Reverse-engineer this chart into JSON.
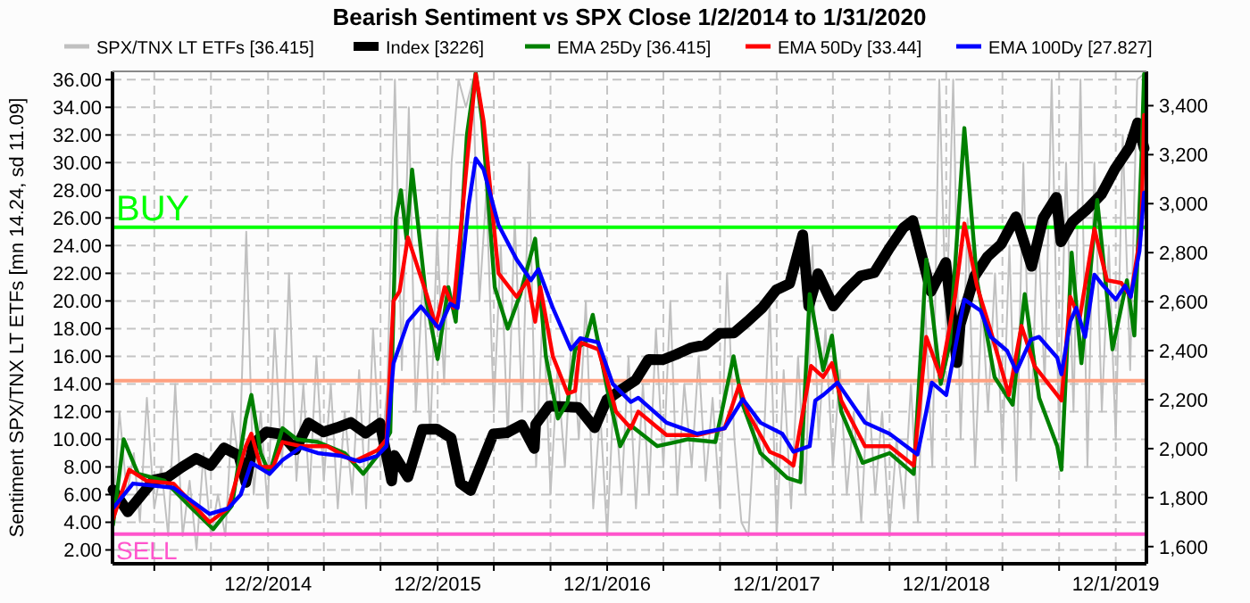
{
  "chart_data": {
    "type": "line",
    "title": "Bearish Sentiment vs SPX Close 1/2/2014 to 1/31/2020",
    "ylabel": "Sentiment SPX/TNX LT ETFs [mn 14.24, sd 11.09]",
    "xlim": [
      "2014-01-01",
      "2020-02-05"
    ],
    "ylim": [
      1,
      36.6
    ],
    "y2lim": [
      1530,
      3540
    ],
    "xticks": [
      {
        "value": "2014-04-01",
        "label": null
      },
      {
        "value": "2014-08-01",
        "label": null
      },
      {
        "value": "2014-12-02",
        "label": "12/2/2014"
      },
      {
        "value": "2015-04-01",
        "label": null
      },
      {
        "value": "2015-08-01",
        "label": null
      },
      {
        "value": "2015-12-02",
        "label": "12/2/2015"
      },
      {
        "value": "2016-04-01",
        "label": null
      },
      {
        "value": "2016-08-01",
        "label": null
      },
      {
        "value": "2016-12-01",
        "label": "12/1/2016"
      },
      {
        "value": "2017-04-01",
        "label": null
      },
      {
        "value": "2017-08-01",
        "label": null
      },
      {
        "value": "2017-12-01",
        "label": "12/1/2017"
      },
      {
        "value": "2018-04-01",
        "label": null
      },
      {
        "value": "2018-08-01",
        "label": null
      },
      {
        "value": "2018-12-01",
        "label": "12/1/2018"
      },
      {
        "value": "2019-04-01",
        "label": null
      },
      {
        "value": "2019-08-01",
        "label": null
      },
      {
        "value": "2019-12-01",
        "label": "12/1/2019"
      }
    ],
    "yticks": [
      {
        "value": 2,
        "label": "2.00"
      },
      {
        "value": 4,
        "label": "4.00"
      },
      {
        "value": 6,
        "label": "6.00"
      },
      {
        "value": 8,
        "label": "8.00"
      },
      {
        "value": 10,
        "label": "10.00"
      },
      {
        "value": 12,
        "label": "12.00"
      },
      {
        "value": 14,
        "label": "14.00"
      },
      {
        "value": 16,
        "label": "16.00"
      },
      {
        "value": 18,
        "label": "18.00"
      },
      {
        "value": 20,
        "label": "20.00"
      },
      {
        "value": 22,
        "label": "22.00"
      },
      {
        "value": 24,
        "label": "24.00"
      },
      {
        "value": 26,
        "label": "26.00"
      },
      {
        "value": 28,
        "label": "28.00"
      },
      {
        "value": 30,
        "label": "30.00"
      },
      {
        "value": 32,
        "label": "32.00"
      },
      {
        "value": 34,
        "label": "34.00"
      },
      {
        "value": 36,
        "label": "36.00"
      }
    ],
    "y2ticks": [
      {
        "value": 1600,
        "label": "1,600"
      },
      {
        "value": 1800,
        "label": "1,800"
      },
      {
        "value": 2000,
        "label": "2,000"
      },
      {
        "value": 2200,
        "label": "2,200"
      },
      {
        "value": 2400,
        "label": "2,400"
      },
      {
        "value": 2600,
        "label": "2,600"
      },
      {
        "value": 2800,
        "label": "2,800"
      },
      {
        "value": 3000,
        "label": "3,000"
      },
      {
        "value": 3200,
        "label": "3,200"
      },
      {
        "value": 3400,
        "label": "3,400"
      }
    ],
    "grid": true,
    "legend": "top",
    "line_style": "solid",
    "ref_lines": [
      {
        "axis": "y",
        "value": 25.33,
        "label": "BUY",
        "color": "#00ff00"
      },
      {
        "axis": "y",
        "value": 14.24,
        "label": null,
        "color": "#ffa080"
      },
      {
        "axis": "y",
        "value": 3.15,
        "label": "SELL",
        "color": "#ff55cc"
      }
    ],
    "series": [
      {
        "name": "SPX/TNX LT ETFs [36.415]",
        "color": "#c0c0c0",
        "x": [
          "2014-01-01",
          "2014-01-16",
          "2014-02-01",
          "2014-02-16",
          "2014-03-01",
          "2014-03-16",
          "2014-04-01",
          "2014-04-16",
          "2014-05-01",
          "2014-05-16",
          "2014-06-01",
          "2014-06-16",
          "2014-07-01",
          "2014-07-16",
          "2014-08-01",
          "2014-08-16",
          "2014-09-01",
          "2014-09-16",
          "2014-10-01",
          "2014-10-16",
          "2014-11-01",
          "2014-11-16",
          "2014-12-01",
          "2014-12-16",
          "2015-01-01",
          "2015-01-16",
          "2015-02-01",
          "2015-02-16",
          "2015-03-01",
          "2015-03-16",
          "2015-04-01",
          "2015-04-16",
          "2015-05-01",
          "2015-05-16",
          "2015-06-01",
          "2015-06-16",
          "2015-07-01",
          "2015-07-16",
          "2015-08-01",
          "2015-08-16",
          "2015-09-01",
          "2015-09-16",
          "2015-10-01",
          "2015-10-16",
          "2015-11-01",
          "2015-11-16",
          "2015-12-01",
          "2015-12-16",
          "2016-01-01",
          "2016-01-16",
          "2016-02-01",
          "2016-02-16",
          "2016-03-01",
          "2016-03-16",
          "2016-04-01",
          "2016-04-16",
          "2016-05-01",
          "2016-05-16",
          "2016-06-01",
          "2016-06-16",
          "2016-07-01",
          "2016-07-16",
          "2016-08-01",
          "2016-08-16",
          "2016-09-01",
          "2016-09-16",
          "2016-10-01",
          "2016-10-16",
          "2016-11-01",
          "2016-11-16",
          "2016-12-01",
          "2016-12-16",
          "2017-01-01",
          "2017-01-16",
          "2017-02-01",
          "2017-02-16",
          "2017-03-01",
          "2017-03-16",
          "2017-04-01",
          "2017-04-16",
          "2017-05-01",
          "2017-05-16",
          "2017-06-01",
          "2017-06-16",
          "2017-07-01",
          "2017-07-16",
          "2017-08-01",
          "2017-08-16",
          "2017-09-01",
          "2017-09-16",
          "2017-10-01",
          "2017-10-16",
          "2017-11-01",
          "2017-11-16",
          "2017-12-01",
          "2017-12-16",
          "2018-01-01",
          "2018-01-16",
          "2018-02-01",
          "2018-02-16",
          "2018-03-01",
          "2018-03-16",
          "2018-04-01",
          "2018-04-16",
          "2018-05-01",
          "2018-05-16",
          "2018-06-01",
          "2018-06-16",
          "2018-07-01",
          "2018-07-16",
          "2018-08-01",
          "2018-08-16",
          "2018-09-01",
          "2018-09-16",
          "2018-10-01",
          "2018-10-16",
          "2018-11-01",
          "2018-11-16",
          "2018-12-01",
          "2018-12-16",
          "2019-01-01",
          "2019-01-16",
          "2019-02-01",
          "2019-02-16",
          "2019-03-01",
          "2019-03-16",
          "2019-04-01",
          "2019-04-16",
          "2019-05-01",
          "2019-05-16",
          "2019-06-01",
          "2019-06-16",
          "2019-07-01",
          "2019-07-16",
          "2019-08-01",
          "2019-08-16",
          "2019-09-01",
          "2019-09-16",
          "2019-10-01",
          "2019-10-16",
          "2019-11-01",
          "2019-11-16",
          "2019-12-01",
          "2019-12-16",
          "2020-01-01",
          "2020-01-16",
          "2020-01-31"
        ],
        "values": [
          4,
          12,
          6,
          9,
          4,
          13,
          5,
          8,
          3,
          14,
          3,
          7,
          2,
          9,
          3,
          6,
          3,
          12,
          8,
          25,
          6,
          12,
          5,
          18,
          8,
          22,
          7,
          14,
          6,
          16,
          7,
          14,
          5,
          12,
          6,
          15,
          5,
          18,
          8,
          14,
          36,
          15,
          34,
          12,
          22,
          10,
          25,
          14,
          30,
          36,
          34,
          36,
          20,
          28,
          12,
          24,
          10,
          26,
          12,
          30,
          8,
          20,
          6,
          15,
          8,
          18,
          10,
          20,
          5,
          12,
          3,
          14,
          6,
          16,
          5,
          14,
          6,
          18,
          8,
          20,
          6,
          14,
          8,
          16,
          7,
          13,
          5,
          22,
          10,
          4,
          3,
          12,
          8,
          20,
          3,
          15,
          5,
          16,
          6,
          24,
          10,
          18,
          8,
          15,
          6,
          12,
          4,
          14,
          6,
          12,
          3,
          10,
          5,
          14,
          4,
          20,
          8,
          36,
          18,
          36,
          10,
          26,
          8,
          20,
          12,
          22,
          9,
          24,
          7,
          30,
          10,
          26,
          14,
          36,
          10,
          30,
          12,
          36,
          8,
          30,
          12,
          24,
          10,
          32,
          15,
          36,
          36.415
        ]
      },
      {
        "name": "Index [3226]",
        "color": "#000000",
        "axis": "y2",
        "x": [
          "2014-01-02",
          "2014-02-03",
          "2014-03-31",
          "2014-04-30",
          "2014-05-30",
          "2014-06-30",
          "2014-07-31",
          "2014-08-29",
          "2014-09-30",
          "2014-10-15",
          "2014-10-31",
          "2014-11-28",
          "2014-12-31",
          "2015-01-30",
          "2015-02-27",
          "2015-03-31",
          "2015-04-30",
          "2015-05-29",
          "2015-06-30",
          "2015-07-31",
          "2015-08-25",
          "2015-08-31",
          "2015-09-29",
          "2015-10-30",
          "2015-11-30",
          "2015-12-31",
          "2016-01-20",
          "2016-02-11",
          "2016-03-31",
          "2016-04-29",
          "2016-05-31",
          "2016-06-27",
          "2016-06-30",
          "2016-07-29",
          "2016-08-31",
          "2016-09-30",
          "2016-11-04",
          "2016-11-30",
          "2016-12-30",
          "2017-01-31",
          "2017-02-28",
          "2017-03-31",
          "2017-04-28",
          "2017-05-31",
          "2017-06-30",
          "2017-07-31",
          "2017-08-31",
          "2017-09-29",
          "2017-10-31",
          "2017-11-30",
          "2017-12-29",
          "2018-01-26",
          "2018-02-08",
          "2018-02-28",
          "2018-04-02",
          "2018-04-30",
          "2018-05-31",
          "2018-06-29",
          "2018-07-31",
          "2018-08-31",
          "2018-09-20",
          "2018-10-29",
          "2018-11-30",
          "2018-12-24",
          "2018-12-31",
          "2019-01-31",
          "2019-02-28",
          "2019-03-29",
          "2019-04-30",
          "2019-06-03",
          "2019-06-28",
          "2019-07-26",
          "2019-08-05",
          "2019-08-30",
          "2019-09-30",
          "2019-10-31",
          "2019-11-29",
          "2019-12-31",
          "2020-01-17",
          "2020-01-31"
        ],
        "values": [
          1832,
          1742,
          1872,
          1884,
          1924,
          1960,
          1931,
          2003,
          1972,
          1862,
          2018,
          2068,
          2059,
          1995,
          2105,
          2068,
          2086,
          2107,
          2063,
          2104,
          1868,
          1972,
          1884,
          2079,
          2080,
          2044,
          1859,
          1829,
          2060,
          2065,
          2097,
          2001,
          2099,
          2174,
          2171,
          2168,
          2085,
          2199,
          2239,
          2279,
          2364,
          2363,
          2384,
          2412,
          2423,
          2470,
          2472,
          2519,
          2575,
          2648,
          2674,
          2873,
          2581,
          2714,
          2582,
          2648,
          2705,
          2718,
          2816,
          2902,
          2931,
          2641,
          2760,
          2351,
          2507,
          2704,
          2784,
          2834,
          2946,
          2744,
          2942,
          3026,
          2844,
          2926,
          2977,
          3038,
          3141,
          3231,
          3330,
          3226
        ]
      },
      {
        "name": "EMA 25Dy [36.415]",
        "color": "#008000",
        "x": [
          "2014-01-02",
          "2014-01-25",
          "2014-02-25",
          "2014-04-23",
          "2014-06-21",
          "2014-08-06",
          "2014-09-15",
          "2014-10-15",
          "2014-10-27",
          "2014-11-16",
          "2014-12-05",
          "2015-01-02",
          "2015-02-02",
          "2015-03-19",
          "2015-05-16",
          "2015-06-25",
          "2015-07-25",
          "2015-08-22",
          "2015-09-03",
          "2015-09-14",
          "2015-09-26",
          "2015-10-08",
          "2015-11-08",
          "2015-12-02",
          "2015-12-25",
          "2016-01-10",
          "2016-02-03",
          "2016-02-22",
          "2016-03-07",
          "2016-04-03",
          "2016-05-01",
          "2016-05-28",
          "2016-06-29",
          "2016-07-22",
          "2016-08-17",
          "2016-09-07",
          "2016-09-23",
          "2016-10-15",
          "2016-10-31",
          "2016-12-02",
          "2016-12-29",
          "2017-01-21",
          "2017-03-19",
          "2017-05-24",
          "2017-07-22",
          "2017-08-30",
          "2017-09-19",
          "2017-10-27",
          "2017-12-24",
          "2018-01-21",
          "2018-02-10",
          "2018-03-11",
          "2018-03-30",
          "2018-04-19",
          "2018-06-04",
          "2018-08-01",
          "2018-09-22",
          "2018-10-19",
          "2018-11-19",
          "2018-12-09",
          "2019-01-09",
          "2019-02-05",
          "2019-03-15",
          "2019-04-23",
          "2019-05-19",
          "2019-06-19",
          "2019-07-28",
          "2019-08-06",
          "2019-08-28",
          "2019-09-18",
          "2019-10-22",
          "2019-11-24",
          "2019-12-25",
          "2020-01-10",
          "2020-01-25",
          "2020-01-31"
        ],
        "values": [
          3.8,
          10.0,
          7.5,
          7.0,
          5.0,
          3.5,
          5.2,
          11.5,
          13.2,
          9.0,
          7.5,
          10.8,
          10.0,
          9.8,
          9.0,
          7.5,
          8.8,
          10.5,
          26.0,
          28.0,
          24.5,
          29.5,
          20.0,
          15.8,
          21.0,
          18.5,
          32.0,
          36.5,
          33,
          21.0,
          18.0,
          20.5,
          24.5,
          16.0,
          11.5,
          12.7,
          16.5,
          17.0,
          19.0,
          13.5,
          9.5,
          11.0,
          9.5,
          10.0,
          9.8,
          16.0,
          12.5,
          9.0,
          7.2,
          6.9,
          20.5,
          15.0,
          17.5,
          12.0,
          8.3,
          9.0,
          7.5,
          23.0,
          14.0,
          17.0,
          32.5,
          21.5,
          14.5,
          12.5,
          20.5,
          13.0,
          9.5,
          7.8,
          23.5,
          15.5,
          27.3,
          16.5,
          21.5,
          17.5,
          30.0,
          36.415
        ]
      },
      {
        "name": "EMA 50Dy [33.44]",
        "color": "#ff0000",
        "x": [
          "2014-01-02",
          "2014-02-06",
          "2014-03-15",
          "2014-05-12",
          "2014-07-29",
          "2014-09-07",
          "2014-10-15",
          "2014-10-27",
          "2014-11-16",
          "2014-12-13",
          "2015-01-02",
          "2015-02-10",
          "2015-04-08",
          "2015-06-05",
          "2015-07-25",
          "2015-08-14",
          "2015-08-29",
          "2015-09-11",
          "2015-09-29",
          "2015-11-08",
          "2015-11-28",
          "2015-12-17",
          "2016-01-05",
          "2016-02-03",
          "2016-02-22",
          "2016-03-10",
          "2016-04-11",
          "2016-05-20",
          "2016-06-13",
          "2016-06-29",
          "2016-07-10",
          "2016-08-06",
          "2016-09-07",
          "2016-09-23",
          "2016-10-04",
          "2016-11-12",
          "2016-12-20",
          "2017-01-21",
          "2017-02-06",
          "2017-04-08",
          "2017-06-13",
          "2017-08-11",
          "2017-09-11",
          "2017-09-30",
          "2017-11-16",
          "2017-12-13",
          "2018-01-06",
          "2018-02-13",
          "2018-03-11",
          "2018-03-30",
          "2018-04-19",
          "2018-06-09",
          "2018-08-01",
          "2018-09-22",
          "2018-10-19",
          "2018-11-19",
          "2018-12-20",
          "2019-01-09",
          "2019-02-05",
          "2019-03-07",
          "2019-04-15",
          "2019-05-12",
          "2019-06-09",
          "2019-07-28",
          "2019-08-06",
          "2019-08-25",
          "2019-09-14",
          "2019-10-16",
          "2019-11-12",
          "2019-12-13",
          "2020-01-02",
          "2020-01-25",
          "2020-01-31"
        ],
        "values": [
          4.2,
          7.8,
          7.0,
          6.8,
          4.0,
          5.0,
          9.5,
          10.4,
          8.0,
          8.0,
          9.8,
          9.5,
          9.5,
          8.4,
          9.2,
          10.0,
          20.0,
          20.7,
          24.6,
          20.5,
          18.2,
          21.0,
          19.5,
          30.0,
          36.4,
          33,
          22.0,
          20.3,
          21.5,
          18.5,
          21.0,
          16.0,
          13.3,
          13.5,
          17.0,
          16.5,
          12.0,
          10.8,
          12.0,
          10.3,
          10.3,
          10.8,
          13.9,
          11.9,
          9.1,
          8.7,
          8.1,
          15.3,
          14.5,
          15.5,
          12.8,
          9.5,
          9.5,
          8.1,
          17.4,
          14.5,
          20.3,
          25.6,
          21.1,
          17.8,
          13.2,
          18.2,
          15.3,
          13.2,
          12.8,
          20.3,
          18.7,
          25.2,
          21.5,
          21.3,
          20.3,
          25.2,
          33.44
        ]
      },
      {
        "name": "EMA 100Dy [27.827]",
        "color": "#0000ff",
        "x": [
          "2014-01-02",
          "2014-02-14",
          "2014-05-12",
          "2014-07-29",
          "2014-09-07",
          "2014-10-04",
          "2014-10-27",
          "2014-12-05",
          "2015-01-02",
          "2015-02-10",
          "2015-03-19",
          "2015-05-08",
          "2015-06-17",
          "2015-07-25",
          "2015-08-14",
          "2015-08-29",
          "2015-09-29",
          "2015-10-27",
          "2015-12-05",
          "2015-12-29",
          "2016-01-14",
          "2016-02-07",
          "2016-02-22",
          "2016-03-10",
          "2016-04-11",
          "2016-05-20",
          "2016-06-20",
          "2016-07-06",
          "2016-08-06",
          "2016-09-14",
          "2016-10-04",
          "2016-11-12",
          "2016-12-13",
          "2017-01-21",
          "2017-02-06",
          "2017-04-08",
          "2017-06-13",
          "2017-08-11",
          "2017-09-19",
          "2017-10-27",
          "2017-12-13",
          "2018-01-06",
          "2018-02-10",
          "2018-02-22",
          "2018-03-11",
          "2018-04-11",
          "2018-06-09",
          "2018-08-01",
          "2018-09-30",
          "2018-10-19",
          "2018-10-31",
          "2018-12-01",
          "2019-01-09",
          "2019-02-13",
          "2019-03-07",
          "2019-04-11",
          "2019-05-01",
          "2019-06-01",
          "2019-06-19",
          "2019-07-28",
          "2019-08-06",
          "2019-08-25",
          "2019-09-07",
          "2019-09-26",
          "2019-10-16",
          "2019-11-04",
          "2019-12-01",
          "2019-12-21",
          "2020-01-02",
          "2020-01-21",
          "2020-01-31"
        ],
        "values": [
          5.0,
          6.8,
          6.5,
          4.6,
          5.0,
          6.0,
          8.3,
          7.5,
          8.5,
          9.4,
          9.0,
          8.8,
          8.4,
          8.8,
          9.5,
          15.5,
          18.5,
          19.6,
          18.0,
          19.8,
          19.5,
          27,
          30.3,
          29.5,
          25.5,
          23.0,
          21.5,
          22.3,
          19.5,
          16.5,
          17.3,
          17.0,
          14.0,
          12.7,
          13.0,
          11.2,
          10.4,
          10.8,
          12.9,
          11.2,
          10.4,
          9.1,
          9.5,
          12.8,
          13.2,
          14.1,
          11.2,
          10.4,
          8.9,
          12,
          14.1,
          13.2,
          20.1,
          19.3,
          17.4,
          16.4,
          14.9,
          17.2,
          17.4,
          15.9,
          14.7,
          18.5,
          19.5,
          17.4,
          21.9,
          21.1,
          20.1,
          21.1,
          20.3,
          23.6,
          27.827
        ]
      }
    ]
  }
}
